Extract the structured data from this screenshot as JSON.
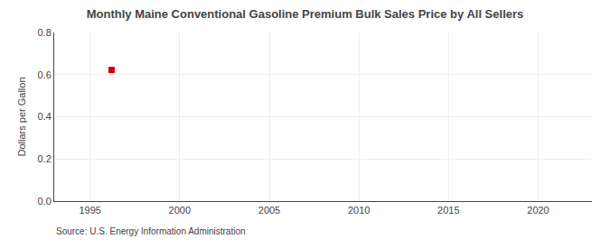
{
  "chart_data": {
    "type": "scatter",
    "title": "Monthly Maine Conventional Gasoline Premium Bulk Sales Price by All Sellers",
    "ylabel": "Dollars per Gallon",
    "annotations": [
      "Source: U.S. Energy Information Administration"
    ],
    "x": [
      1996.2
    ],
    "values": [
      0.622
    ],
    "color": "#cc0000",
    "marker": "square",
    "xlim": [
      1993,
      2023
    ],
    "xticks": [
      1995,
      2000,
      2005,
      2010,
      2015,
      2020
    ],
    "ylim": [
      0.0,
      0.8
    ],
    "yticks": [
      {
        "value": 0.0,
        "label": "0.0"
      },
      0.2,
      0.4,
      0.6,
      0.8
    ],
    "grid": true
  }
}
